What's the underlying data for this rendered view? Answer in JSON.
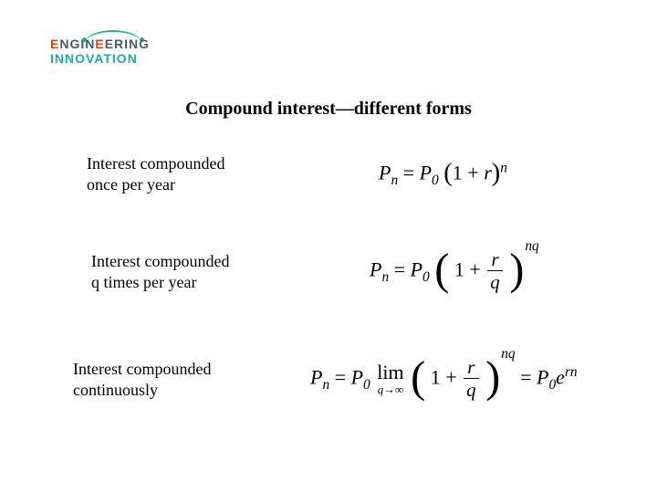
{
  "logo": {
    "top_line": "ENGINEERING",
    "bottom_line": "INNOVATION",
    "text_color_main": "#4a5a6a",
    "accent_color": "#c84820",
    "arc_color": "#2aa8a8"
  },
  "title": "Compound interest—different forms",
  "rows": [
    {
      "label": "Interest compounded\nonce per year",
      "formula": {
        "type": "equation",
        "display": "P_n = P_0 (1 + r)^n",
        "lhs_var": "P",
        "lhs_sub": "n",
        "rhs_coeff_var": "P",
        "rhs_coeff_sub": "0",
        "paren_inner": "1 + r",
        "exponent": "n"
      }
    },
    {
      "label": "Interest compounded\nq times per year",
      "formula": {
        "type": "equation",
        "display": "P_n = P_0 (1 + r/q)^{nq}",
        "lhs_var": "P",
        "lhs_sub": "n",
        "rhs_coeff_var": "P",
        "rhs_coeff_sub": "0",
        "frac_num": "r",
        "frac_den": "q",
        "exponent": "nq"
      }
    },
    {
      "label": "Interest compounded\ncontinuously",
      "formula": {
        "type": "equation",
        "display": "P_n = P_0 lim_{q→∞} (1 + r/q)^{nq} = P_0 e^{rn}",
        "lhs_var": "P",
        "lhs_sub": "n",
        "rhs_coeff_var": "P",
        "rhs_coeff_sub": "0",
        "limit_under": "q→∞",
        "frac_num": "r",
        "frac_den": "q",
        "exponent": "nq",
        "final_coeff_var": "P",
        "final_coeff_sub": "0",
        "final_base": "e",
        "final_exp": "rn"
      }
    }
  ],
  "colors": {
    "background": "#ffffff",
    "text": "#000000"
  },
  "fonts": {
    "body": "Times New Roman",
    "logo": "Arial",
    "title_size_pt": 20,
    "label_size_pt": 18,
    "formula_size_pt": 22
  }
}
